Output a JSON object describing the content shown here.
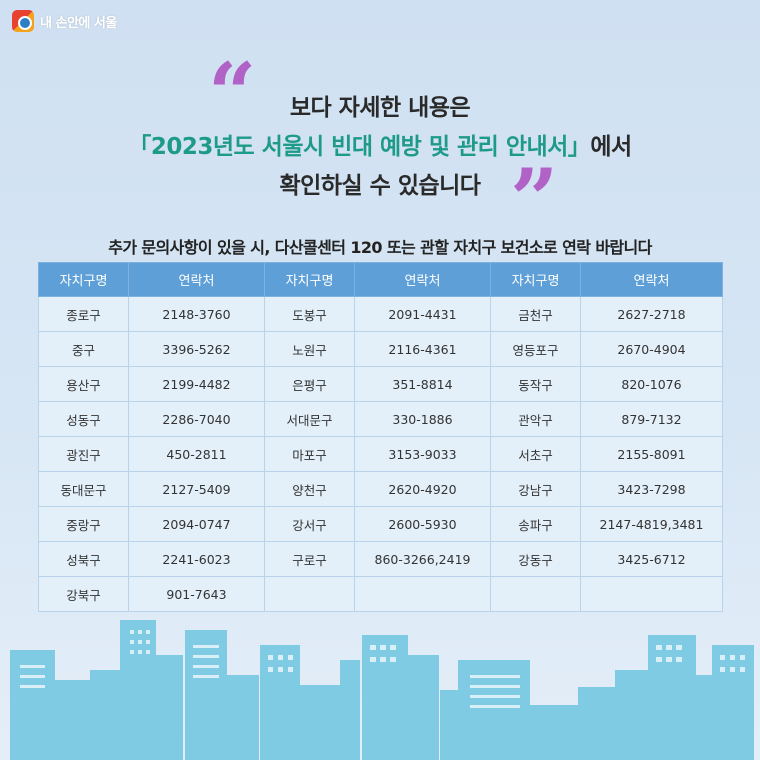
{
  "brand": {
    "name": "내 손안에 서울"
  },
  "headline": {
    "line1": "보다 자세한 내용은",
    "line2_highlight": "「2023년도 서울시 빈대 예방 및 관리 안내서」",
    "line2_suffix": "에서",
    "line3": "확인하실 수 있습니다"
  },
  "subtitle": "추가 문의사항이 있을 시, 다산콜센터 120 또는 관할 자치구 보건소로 연락 바랍니다",
  "table": {
    "headers": [
      "자치구명",
      "연락처",
      "자치구명",
      "연락처",
      "자치구명",
      "연락처"
    ],
    "rows": [
      [
        "종로구",
        "2148-3760",
        "도봉구",
        "2091-4431",
        "금천구",
        "2627-2718"
      ],
      [
        "중구",
        "3396-5262",
        "노원구",
        "2116-4361",
        "영등포구",
        "2670-4904"
      ],
      [
        "용산구",
        "2199-4482",
        "은평구",
        "351-8814",
        "동작구",
        "820-1076"
      ],
      [
        "성동구",
        "2286-7040",
        "서대문구",
        "330-1886",
        "관악구",
        "879-7132"
      ],
      [
        "광진구",
        "450-2811",
        "마포구",
        "3153-9033",
        "서초구",
        "2155-8091"
      ],
      [
        "동대문구",
        "2127-5409",
        "양천구",
        "2620-4920",
        "강남구",
        "3423-7298"
      ],
      [
        "중랑구",
        "2094-0747",
        "강서구",
        "2600-5930",
        "송파구",
        "2147-4819,3481"
      ],
      [
        "성북구",
        "2241-6023",
        "구로구",
        "860-3266,2419",
        "강동구",
        "3425-6712"
      ],
      [
        "강북구",
        "901-7643",
        "",
        "",
        "",
        ""
      ]
    ]
  },
  "colors": {
    "accent_green": "#1e9a8a",
    "quote_purple": "#b162c7",
    "header_blue": "#5d9fd6",
    "cell_bg": "#e3f0fa",
    "skyline": "#7fcbe3"
  }
}
